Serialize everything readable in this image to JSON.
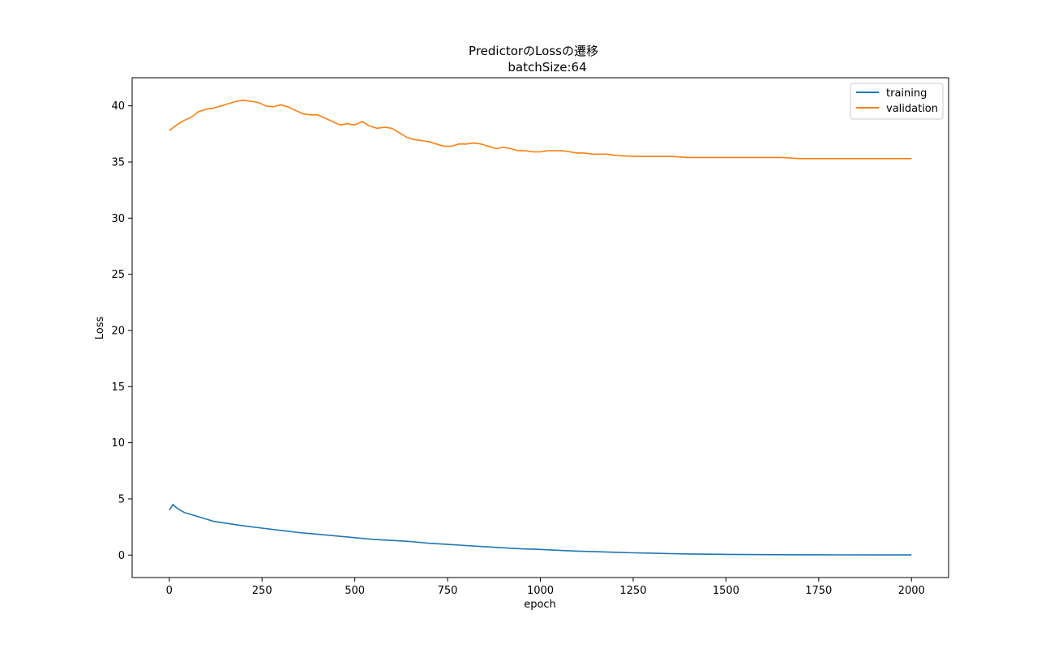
{
  "chart_data": {
    "type": "line",
    "title": "PredictorのLossの遷移",
    "subtitle": "batchSize:64",
    "xlabel": "epoch",
    "ylabel": "Loss",
    "xlim": [
      -100,
      2100
    ],
    "ylim": [
      -2,
      42.5
    ],
    "xticks": [
      0,
      250,
      500,
      750,
      1000,
      1250,
      1500,
      1750,
      2000
    ],
    "yticks": [
      0,
      5,
      10,
      15,
      20,
      25,
      30,
      35,
      40
    ],
    "legend_position": "top-right",
    "grid": false,
    "series": [
      {
        "name": "training",
        "color": "#1f77b4",
        "x": [
          0,
          10,
          20,
          30,
          40,
          50,
          60,
          70,
          80,
          90,
          100,
          120,
          140,
          160,
          180,
          200,
          250,
          300,
          350,
          400,
          450,
          500,
          550,
          600,
          650,
          700,
          750,
          800,
          850,
          900,
          950,
          1000,
          1050,
          1100,
          1150,
          1200,
          1250,
          1300,
          1350,
          1400,
          1450,
          1500,
          1600,
          1700,
          1800,
          1900,
          2000
        ],
        "values": [
          4.0,
          4.5,
          4.2,
          4.0,
          3.8,
          3.7,
          3.6,
          3.5,
          3.4,
          3.3,
          3.2,
          3.0,
          2.9,
          2.8,
          2.7,
          2.6,
          2.4,
          2.2,
          2.0,
          1.85,
          1.7,
          1.55,
          1.4,
          1.3,
          1.2,
          1.05,
          0.95,
          0.85,
          0.75,
          0.65,
          0.55,
          0.5,
          0.42,
          0.35,
          0.3,
          0.25,
          0.2,
          0.17,
          0.13,
          0.1,
          0.08,
          0.06,
          0.04,
          0.03,
          0.02,
          0.015,
          0.01
        ]
      },
      {
        "name": "validation",
        "color": "#ff7f0e",
        "x": [
          0,
          20,
          40,
          60,
          80,
          100,
          120,
          140,
          160,
          180,
          200,
          220,
          240,
          260,
          280,
          300,
          320,
          340,
          360,
          380,
          400,
          420,
          440,
          460,
          480,
          500,
          520,
          540,
          560,
          580,
          600,
          620,
          640,
          660,
          680,
          700,
          720,
          740,
          760,
          780,
          800,
          820,
          840,
          860,
          880,
          900,
          920,
          940,
          960,
          980,
          1000,
          1020,
          1040,
          1060,
          1080,
          1100,
          1120,
          1140,
          1160,
          1180,
          1200,
          1250,
          1300,
          1350,
          1400,
          1450,
          1500,
          1550,
          1600,
          1650,
          1700,
          1750,
          1800,
          1850,
          1900,
          1950,
          2000
        ],
        "values": [
          37.8,
          38.3,
          38.7,
          39.0,
          39.5,
          39.7,
          39.8,
          40.0,
          40.2,
          40.4,
          40.5,
          40.4,
          40.3,
          40.0,
          39.9,
          40.1,
          39.9,
          39.6,
          39.3,
          39.2,
          39.2,
          38.9,
          38.6,
          38.3,
          38.4,
          38.3,
          38.6,
          38.2,
          38.0,
          38.1,
          38.0,
          37.6,
          37.2,
          37.0,
          36.9,
          36.8,
          36.6,
          36.4,
          36.4,
          36.6,
          36.6,
          36.7,
          36.6,
          36.4,
          36.2,
          36.3,
          36.2,
          36.0,
          36.0,
          35.9,
          35.9,
          36.0,
          36.0,
          36.0,
          35.9,
          35.8,
          35.8,
          35.7,
          35.7,
          35.7,
          35.6,
          35.5,
          35.5,
          35.5,
          35.4,
          35.4,
          35.4,
          35.4,
          35.4,
          35.4,
          35.3,
          35.3,
          35.3,
          35.3,
          35.3,
          35.3,
          35.3
        ]
      }
    ]
  }
}
